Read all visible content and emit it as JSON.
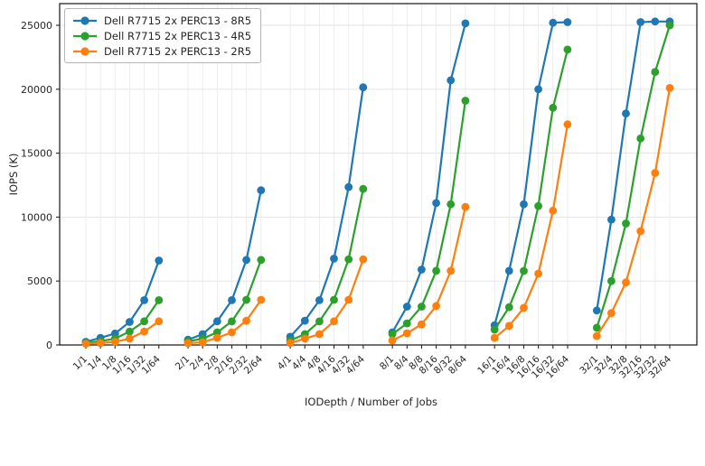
{
  "chart_data": {
    "type": "line",
    "title": "",
    "xlabel": "IODepth / Number of Jobs",
    "ylabel": "IOPS (K)",
    "ylim": [
      0,
      26700
    ],
    "yticks": [
      0,
      5000,
      10000,
      15000,
      20000,
      25000
    ],
    "grid": true,
    "legend_position": "upper-left",
    "group_size": 6,
    "categories": [
      "1/1",
      "1/4",
      "1/8",
      "1/16",
      "1/32",
      "1/64",
      "2/1",
      "2/4",
      "2/8",
      "2/16",
      "2/32",
      "2/64",
      "4/1",
      "4/4",
      "4/8",
      "4/16",
      "4/32",
      "4/64",
      "8/1",
      "8/4",
      "8/8",
      "8/16",
      "8/32",
      "8/64",
      "16/1",
      "16/4",
      "16/8",
      "16/16",
      "16/32",
      "16/64",
      "32/1",
      "32/4",
      "32/8",
      "32/16",
      "32/32",
      "32/64"
    ],
    "series": [
      {
        "name": "Dell R7715 2x PERC13 - 8R5",
        "color": "#1f77b4",
        "values": [
          250,
          560,
          900,
          1800,
          3500,
          6600,
          420,
          850,
          1850,
          3500,
          6650,
          12100,
          640,
          1900,
          3500,
          6750,
          12350,
          20150,
          990,
          3000,
          5900,
          11100,
          20700,
          25150,
          1550,
          5800,
          11000,
          20000,
          25200,
          25250,
          2700,
          9800,
          18100,
          25250,
          25300,
          25300
        ]
      },
      {
        "name": "Dell R7715 2x PERC13 - 4R5",
        "color": "#2ca02c",
        "values": [
          150,
          300,
          500,
          1050,
          1850,
          3500,
          280,
          500,
          990,
          1840,
          3530,
          6650,
          350,
          850,
          1840,
          3530,
          6700,
          12200,
          850,
          1690,
          3000,
          5800,
          11000,
          19100,
          1200,
          2960,
          5790,
          10870,
          18550,
          23100,
          1350,
          5000,
          9500,
          16150,
          21350,
          25000
        ]
      },
      {
        "name": "Dell R7715 2x PERC13 - 2R5",
        "color": "#ff7f0e",
        "values": [
          100,
          150,
          250,
          500,
          1050,
          1850,
          140,
          210,
          560,
          990,
          1900,
          3530,
          150,
          500,
          850,
          1850,
          3530,
          6700,
          350,
          920,
          1620,
          3050,
          5800,
          10800,
          550,
          1500,
          2900,
          5580,
          10500,
          17250,
          700,
          2500,
          4900,
          8900,
          13450,
          20100
        ]
      }
    ]
  }
}
